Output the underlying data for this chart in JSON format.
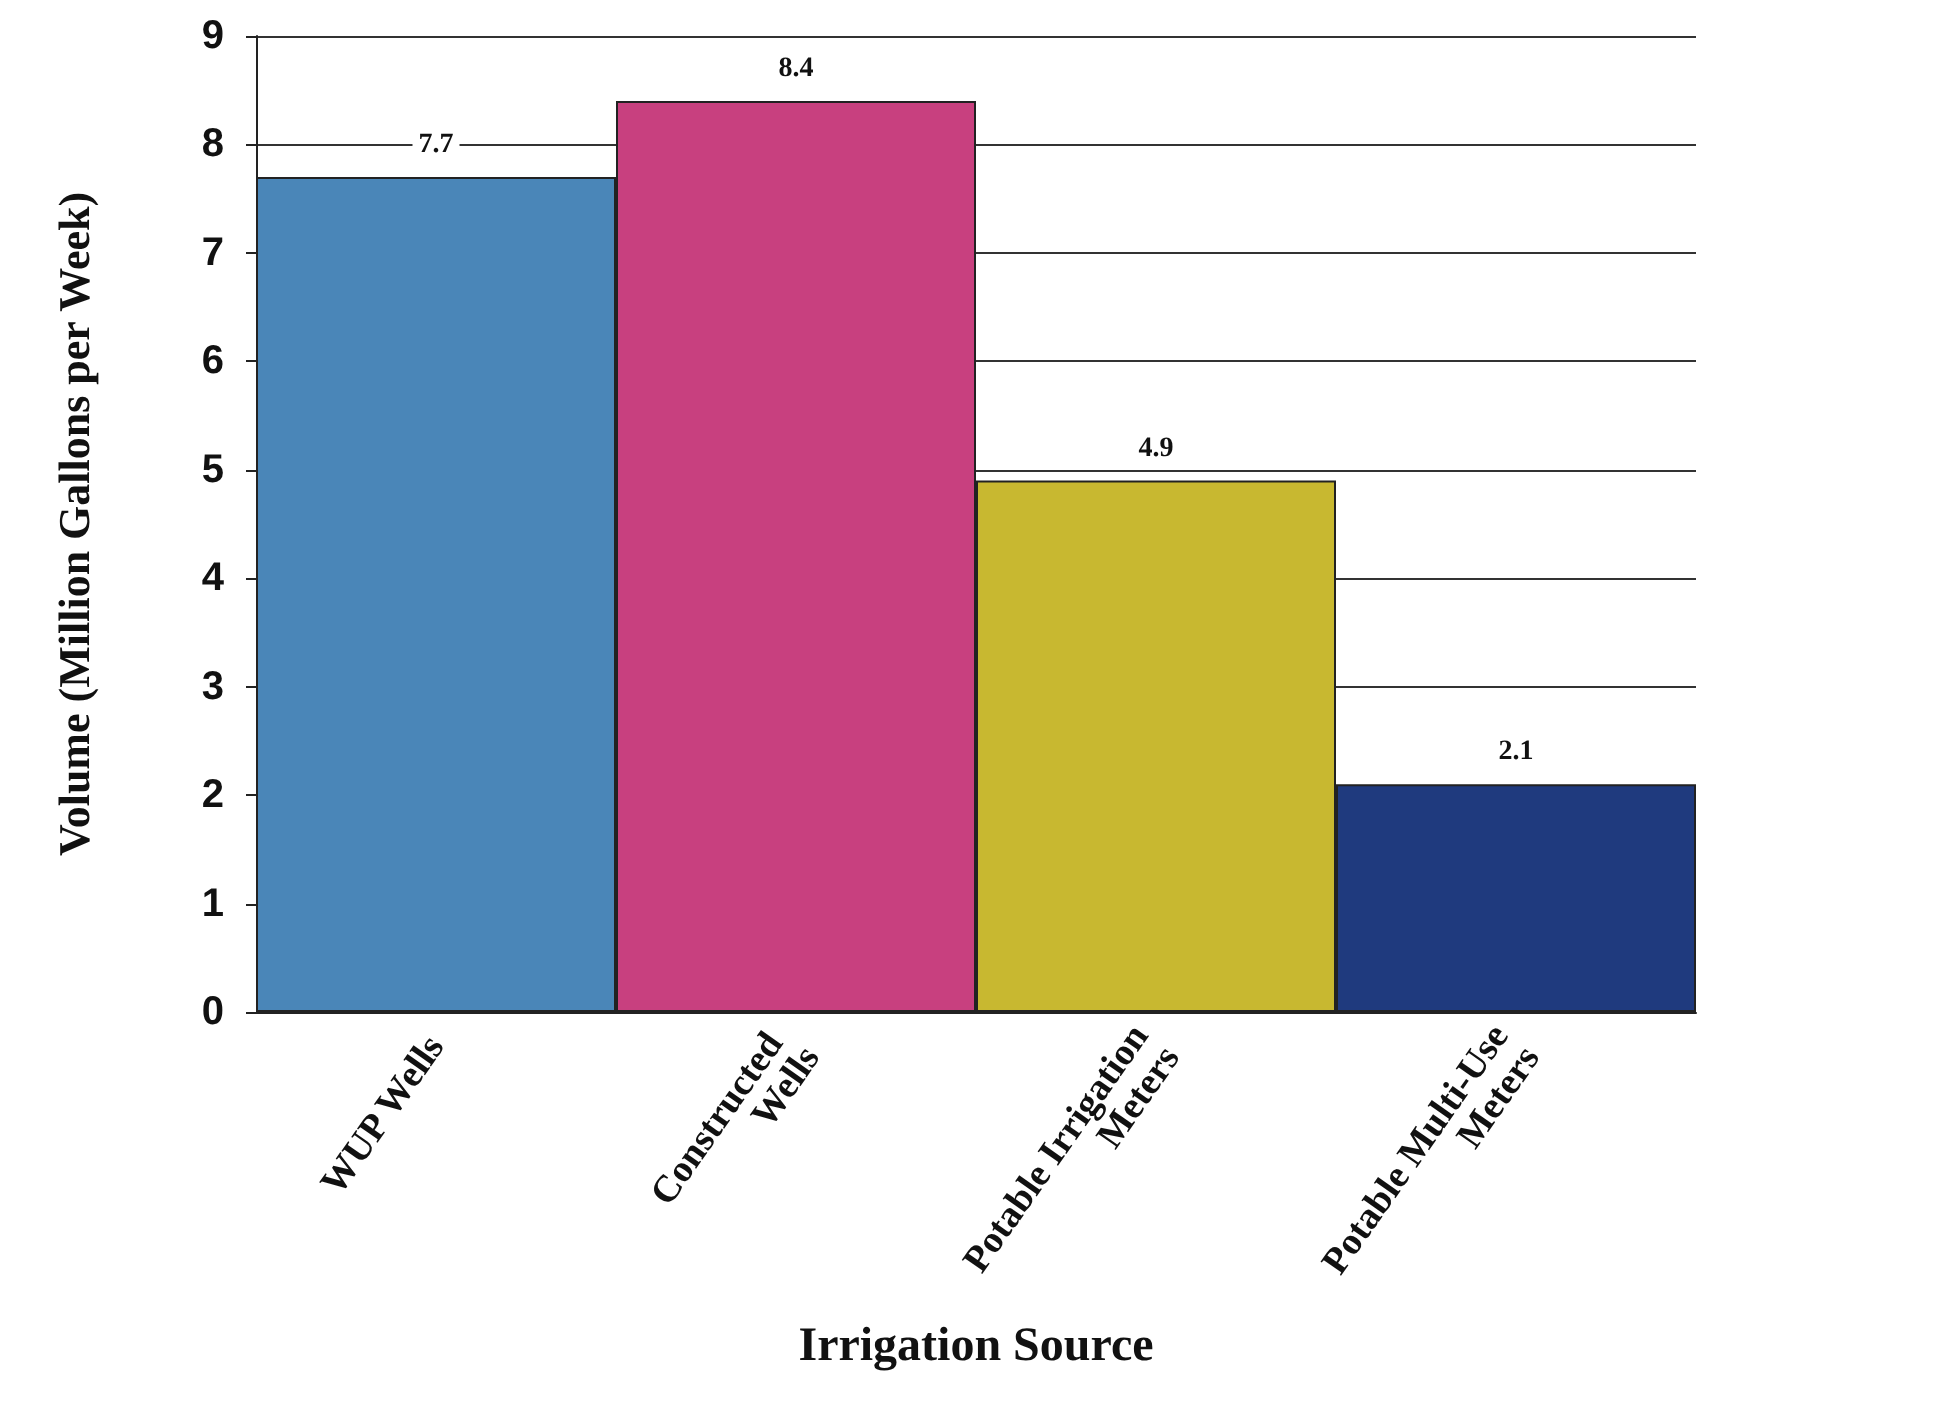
{
  "chart_data": {
    "type": "bar",
    "xlabel": "Irrigation Source",
    "ylabel": "Volume (Million Gallons per Week)",
    "categories": [
      "WUP Wells",
      "Constructed Wells",
      "Potable Irrigation Meters",
      "Potable Multi-Use Meters"
    ],
    "values": [
      7.7,
      8.4,
      4.9,
      2.1
    ],
    "colors": [
      "#4a86b8",
      "#c8407f",
      "#c8b830",
      "#1f3a7e"
    ],
    "ylim": [
      0,
      9
    ],
    "yticks": [
      0,
      1,
      2,
      3,
      4,
      5,
      6,
      7,
      8,
      9
    ],
    "grid": "y",
    "data_labels": true
  }
}
